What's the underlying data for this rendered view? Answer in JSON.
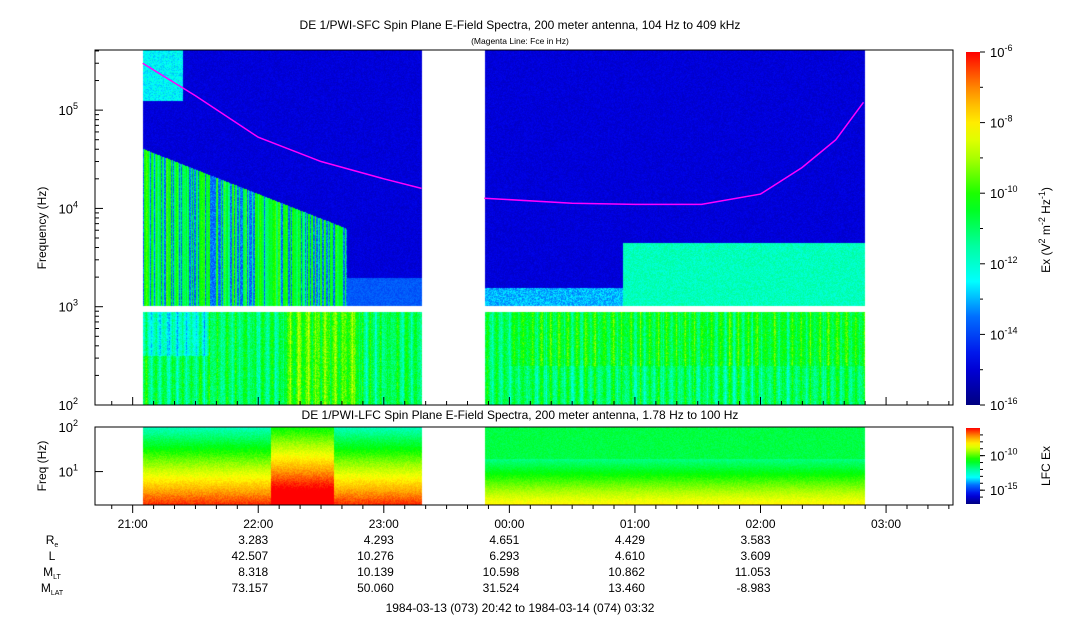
{
  "chart_data": [
    {
      "type": "heatmap",
      "title": "DE 1/PWI-SFC  Spin Plane E-Field Spectra, 200 meter antenna, 104 Hz to 409 kHz",
      "subtitle": "(Magenta Line: Fce in Hz)",
      "ylabel": "Frequency (Hz)",
      "yscale": "log",
      "ylim": [
        100,
        409000
      ],
      "yticks": [
        "10^2",
        "10^3",
        "10^4",
        "10^5"
      ],
      "data_intervals_hours": [
        [
          21.08,
          23.3
        ],
        [
          23.8,
          26.83
        ]
      ],
      "fce_line": {
        "color": "#ff00ff",
        "t_hours": [
          21.08,
          21.5,
          22.0,
          22.5,
          23.0,
          23.3,
          23.8,
          24.5,
          25.0,
          25.53,
          26.0,
          26.33,
          26.6,
          26.82
        ],
        "freq_hz": [
          300000,
          140000,
          53000,
          30000,
          20000,
          16000,
          12700,
          11300,
          11000,
          11000,
          14000,
          26000,
          50000,
          120000
        ]
      },
      "colorbar": {
        "label_prefix": "Ex (V",
        "label_sup1": "2",
        "label_mid": " m",
        "label_sup2": "-2",
        "label_mid2": " Hz",
        "label_sup3": "-1",
        "label_suffix": ")",
        "range_log10": [
          -16,
          -6
        ],
        "ticks": [
          {
            "base": "10",
            "exp": "-6"
          },
          {
            "base": "10",
            "exp": "-8"
          },
          {
            "base": "10",
            "exp": "-10"
          },
          {
            "base": "10",
            "exp": "-12"
          },
          {
            "base": "10",
            "exp": "-14"
          },
          {
            "base": "10",
            "exp": "-16"
          }
        ]
      }
    },
    {
      "type": "heatmap",
      "title": "DE 1/PWI-LFC  Spin Plane E-Field Spectra, 200 meter antenna, 1.78 Hz to 100 Hz",
      "ylabel": "Freq (Hz)",
      "yscale": "log",
      "ylim": [
        1.78,
        100
      ],
      "yticks": [
        "10^2",
        "10^1"
      ],
      "colorbar": {
        "label": "LFC Ex",
        "range_log10": [
          -17,
          -6
        ],
        "ticks": [
          {
            "base": "10",
            "exp": "-10"
          },
          {
            "base": "10",
            "exp": "-15"
          }
        ]
      }
    }
  ],
  "time_axis": {
    "start_hours": 20.7,
    "end_hours": 27.533,
    "ticks": [
      {
        "label": "21:00",
        "t": 21
      },
      {
        "label": "22:00",
        "t": 22
      },
      {
        "label": "23:00",
        "t": 23
      },
      {
        "label": "00:00",
        "t": 24
      },
      {
        "label": "01:00",
        "t": 25
      },
      {
        "label": "02:00",
        "t": 26
      },
      {
        "label": "03:00",
        "t": 27
      }
    ],
    "range_label": "1984-03-13 (073) 20:42 to 1984-03-14 (074) 03:32"
  },
  "ephemeris": {
    "columns_t": [
      22,
      23,
      24,
      25,
      26
    ],
    "rows": [
      {
        "label": "R",
        "sub": "e",
        "values": [
          "3.283",
          "4.293",
          "4.651",
          "4.429",
          "3.583"
        ]
      },
      {
        "label": "L",
        "sub": "",
        "values": [
          "42.507",
          "10.276",
          "6.293",
          "4.610",
          "3.609"
        ]
      },
      {
        "label": "M",
        "sub": "LT",
        "values": [
          "8.318",
          "10.139",
          "10.598",
          "10.862",
          "11.053"
        ]
      },
      {
        "label": "M",
        "sub": "LAT",
        "values": [
          "73.157",
          "50.060",
          "31.524",
          "13.460",
          "-8.983"
        ]
      }
    ]
  }
}
